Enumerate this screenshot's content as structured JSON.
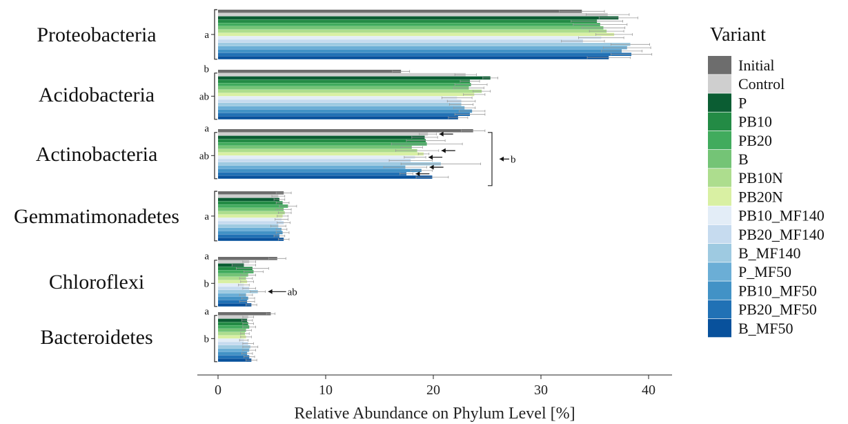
{
  "chart_data": {
    "type": "bar",
    "orientation": "horizontal",
    "xlabel": "Relative Abundance on Phylum Level [%]",
    "xlim": [
      0,
      42
    ],
    "xticks": [
      0,
      10,
      20,
      30,
      40
    ],
    "xtick_labels": [
      "0",
      "10",
      "20",
      "30",
      "40"
    ],
    "grid": false,
    "legend_title": "Variant",
    "legend_position": "right",
    "variants": [
      "Initial",
      "Control",
      "P",
      "PB10",
      "PB20",
      "B",
      "PB10N",
      "PB20N",
      "PB10_MF140",
      "PB20_MF140",
      "B_MF140",
      "P_MF50",
      "PB10_MF50",
      "PB20_MF50",
      "B_MF50"
    ],
    "colors": [
      "#6d6d6d",
      "#cfcfcf",
      "#0b5d33",
      "#238b45",
      "#41ab5d",
      "#74c476",
      "#addd8e",
      "#d9f0a3",
      "#e3edf7",
      "#c6dbef",
      "#9ecae1",
      "#6baed6",
      "#4292c6",
      "#2171b5",
      "#08519c"
    ],
    "categories": [
      "Proteobacteria",
      "Acidobacteria",
      "Actinobacteria",
      "Gemmatimonadetes",
      "Chloroflexi",
      "Bacteroidetes"
    ],
    "values": [
      [
        33.8,
        36.2,
        37.2,
        35.2,
        35.5,
        35.8,
        36.1,
        36.8,
        35.6,
        33.9,
        38.3,
        38.0,
        37.5,
        38.4,
        36.3
      ],
      [
        17.0,
        23.0,
        25.3,
        23.4,
        23.5,
        23.3,
        24.5,
        23.8,
        22.2,
        22.6,
        22.6,
        22.9,
        23.6,
        23.4,
        22.3
      ],
      [
        23.7,
        19.5,
        19.2,
        19.3,
        19.4,
        18.0,
        18.5,
        19.1,
        18.3,
        17.9,
        20.7,
        17.4,
        18.9,
        17.5,
        19.9
      ],
      [
        6.1,
        5.6,
        5.7,
        6.0,
        6.5,
        6.1,
        6.2,
        6.0,
        5.9,
        6.1,
        5.6,
        5.9,
        6.0,
        5.7,
        6.1
      ],
      [
        5.5,
        2.9,
        2.4,
        3.2,
        3.3,
        2.8,
        2.6,
        2.7,
        2.4,
        2.9,
        3.7,
        2.6,
        2.8,
        2.7,
        3.1
      ],
      [
        4.9,
        2.8,
        2.7,
        2.8,
        2.9,
        2.6,
        2.5,
        2.6,
        2.4,
        2.8,
        3.0,
        2.9,
        2.7,
        2.9,
        3.1
      ]
    ],
    "errors": [
      [
        2.1,
        2.0,
        1.8,
        2.4,
        2.5,
        2.0,
        1.6,
        1.7,
        2.1,
        2.0,
        1.8,
        2.2,
        1.9,
        1.9,
        2.0
      ],
      [
        0.8,
        1.0,
        0.7,
        0.9,
        1.5,
        1.4,
        0.8,
        1.0,
        1.4,
        1.3,
        1.1,
        1.0,
        1.2,
        1.4,
        0.9
      ],
      [
        1.1,
        0.8,
        1.2,
        1.8,
        3.3,
        1.0,
        2.0,
        0.5,
        1.0,
        2.0,
        3.7,
        2.0,
        1.0,
        0.6,
        1.5
      ],
      [
        0.7,
        0.6,
        0.5,
        0.6,
        0.8,
        0.7,
        0.6,
        0.5,
        0.6,
        0.6,
        0.7,
        0.5,
        0.6,
        0.5,
        0.5
      ],
      [
        0.8,
        0.6,
        1.1,
        1.5,
        0.9,
        0.7,
        0.6,
        0.6,
        0.5,
        0.6,
        0.7,
        0.6,
        0.6,
        0.7,
        0.5
      ],
      [
        0.4,
        0.5,
        0.5,
        0.5,
        0.6,
        0.5,
        0.4,
        0.5,
        0.4,
        0.5,
        0.7,
        0.6,
        0.5,
        0.5,
        0.5
      ]
    ],
    "group_letters": [
      [
        {
          "label": "a",
          "from": 0,
          "to": 14
        }
      ],
      [
        {
          "label": "b",
          "from": 0,
          "to": 0
        },
        {
          "label": "ab",
          "from": 1,
          "to": 14
        }
      ],
      [
        {
          "label": "a",
          "from": 0,
          "to": 0
        },
        {
          "label": "ab",
          "from": 1,
          "to": 14
        }
      ],
      [
        {
          "label": "a",
          "from": 0,
          "to": 14
        }
      ],
      [
        {
          "label": "a",
          "from": 0,
          "to": 0
        },
        {
          "label": "b",
          "from": 1,
          "to": 14
        }
      ],
      [
        {
          "label": "a",
          "from": 0,
          "to": 0
        },
        {
          "label": "b",
          "from": 1,
          "to": 14
        }
      ]
    ],
    "annotations": [
      {
        "category": "Actinobacteria",
        "label": "b",
        "type": "right-bracket",
        "arrow_rows": [
          1,
          6,
          8,
          11,
          13
        ]
      },
      {
        "category": "Chloroflexi",
        "label": "ab",
        "type": "arrow",
        "row": 10
      }
    ]
  }
}
